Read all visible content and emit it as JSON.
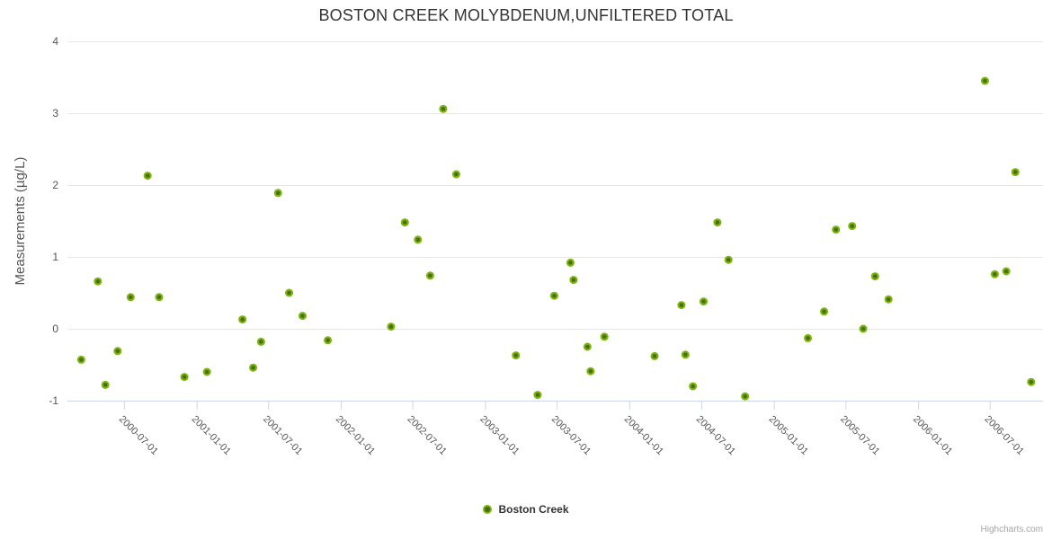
{
  "title": "BOSTON CREEK MOLYBDENUM,UNFILTERED TOTAL",
  "credits_label": "Highcharts.com",
  "legend": {
    "series_label": "Boston Creek"
  },
  "colors": {
    "marker_fill": "#7cb40c",
    "marker_center": "#456f10",
    "grid_line": "#e6e6e6",
    "axis_line": "#ccd6eb",
    "title_text": "#333333",
    "axis_label_text": "#555555",
    "credits_text": "#a5a5a5"
  },
  "chart_data": {
    "type": "scatter",
    "title": "BOSTON CREEK MOLYBDENUM,UNFILTERED TOTAL",
    "xlabel": "",
    "ylabel": "Measurements (µg/L)",
    "ylim": [
      -1,
      4
    ],
    "yticks": [
      -1,
      0,
      1,
      2,
      3,
      4
    ],
    "x_range": [
      "2000-02-09",
      "2006-11-13"
    ],
    "xticks": [
      "2000-07-01",
      "2001-01-01",
      "2001-07-01",
      "2002-01-01",
      "2002-07-01",
      "2003-01-01",
      "2003-07-01",
      "2004-01-01",
      "2004-07-01",
      "2005-01-01",
      "2005-07-01",
      "2006-01-01",
      "2006-07-01"
    ],
    "grid": "horizontal",
    "legend_position": "bottom-center",
    "series": [
      {
        "name": "Boston Creek",
        "color": "#7cb40c",
        "points": [
          [
            "2000-03-15",
            -0.43
          ],
          [
            "2000-04-26",
            0.66
          ],
          [
            "2000-05-15",
            -0.78
          ],
          [
            "2000-06-15",
            -0.31
          ],
          [
            "2000-07-18",
            0.44
          ],
          [
            "2000-08-30",
            2.13
          ],
          [
            "2000-09-28",
            0.44
          ],
          [
            "2000-12-01",
            -0.67
          ],
          [
            "2001-01-27",
            -0.6
          ],
          [
            "2001-04-27",
            0.13
          ],
          [
            "2001-05-24",
            -0.54
          ],
          [
            "2001-06-13",
            -0.18
          ],
          [
            "2001-07-26",
            1.89
          ],
          [
            "2001-08-23",
            0.5
          ],
          [
            "2001-09-26",
            0.18
          ],
          [
            "2001-11-29",
            -0.16
          ],
          [
            "2002-05-08",
            0.03
          ],
          [
            "2002-06-12",
            1.48
          ],
          [
            "2002-07-15",
            1.24
          ],
          [
            "2002-08-15",
            0.74
          ],
          [
            "2002-09-17",
            3.06
          ],
          [
            "2002-10-20",
            2.15
          ],
          [
            "2003-03-20",
            -0.37
          ],
          [
            "2003-05-14",
            -0.92
          ],
          [
            "2003-06-25",
            0.46
          ],
          [
            "2003-08-05",
            0.92
          ],
          [
            "2003-08-13",
            0.68
          ],
          [
            "2003-09-17",
            -0.25
          ],
          [
            "2003-09-25",
            -0.59
          ],
          [
            "2003-10-30",
            -0.11
          ],
          [
            "2004-03-05",
            -0.38
          ],
          [
            "2004-05-12",
            0.33
          ],
          [
            "2004-05-22",
            -0.36
          ],
          [
            "2004-06-10",
            -0.8
          ],
          [
            "2004-07-07",
            0.38
          ],
          [
            "2004-08-11",
            1.48
          ],
          [
            "2004-09-08",
            0.96
          ],
          [
            "2004-10-20",
            -0.94
          ],
          [
            "2005-03-28",
            -0.13
          ],
          [
            "2005-05-08",
            0.24
          ],
          [
            "2005-06-07",
            1.38
          ],
          [
            "2005-07-18",
            1.43
          ],
          [
            "2005-08-15",
            0.0
          ],
          [
            "2005-09-14",
            0.73
          ],
          [
            "2005-10-18",
            0.41
          ],
          [
            "2006-06-19",
            3.45
          ],
          [
            "2006-07-14",
            0.76
          ],
          [
            "2006-08-12",
            0.8
          ],
          [
            "2006-09-04",
            2.18
          ],
          [
            "2006-10-14",
            -0.74
          ]
        ]
      }
    ]
  }
}
